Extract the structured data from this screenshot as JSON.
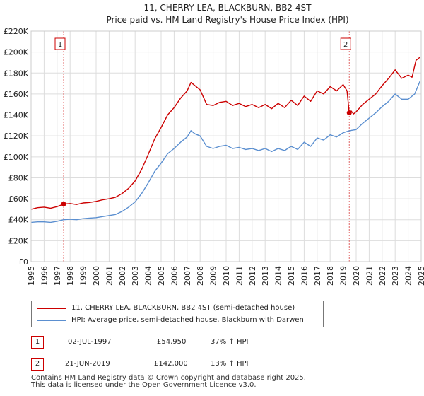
{
  "chart_data": {
    "type": "line",
    "title": "11, CHERRY LEA, BLACKBURN, BB2 4ST",
    "subtitle": "Price paid vs. HM Land Registry's House Price Index (HPI)",
    "xlim": [
      1995,
      2025
    ],
    "ylim": [
      0,
      220000
    ],
    "x_ticks": [
      1995,
      1996,
      1997,
      1998,
      1999,
      2000,
      2001,
      2002,
      2003,
      2004,
      2005,
      2006,
      2007,
      2008,
      2009,
      2010,
      2011,
      2012,
      2013,
      2014,
      2015,
      2016,
      2017,
      2018,
      2019,
      2020,
      2021,
      2022,
      2023,
      2024,
      2025
    ],
    "y_ticks": [
      0,
      20000,
      40000,
      60000,
      80000,
      100000,
      120000,
      140000,
      160000,
      180000,
      200000,
      220000
    ],
    "y_tick_labels": [
      "£0",
      "£20K",
      "£40K",
      "£60K",
      "£80K",
      "£100K",
      "£120K",
      "£140K",
      "£160K",
      "£180K",
      "£200K",
      "£220K"
    ],
    "grid": true,
    "colors": {
      "property": "#cc0000",
      "hpi": "#5b8fd0",
      "vline": "#e06666",
      "grid": "#dddddd"
    },
    "series": [
      {
        "name": "11, CHERRY LEA, BLACKBURN, BB2 4ST (semi-detached house)",
        "color": "#cc0000",
        "x": [
          1995.0,
          1995.5,
          1996.0,
          1996.5,
          1997.0,
          1997.5,
          1998.0,
          1998.5,
          1999.0,
          1999.5,
          2000.0,
          2000.5,
          2001.0,
          2001.5,
          2002.0,
          2002.5,
          2003.0,
          2003.5,
          2004.0,
          2004.5,
          2005.0,
          2005.5,
          2006.0,
          2006.5,
          2007.0,
          2007.3,
          2007.6,
          2008.0,
          2008.5,
          2009.0,
          2009.5,
          2010.0,
          2010.5,
          2011.0,
          2011.5,
          2012.0,
          2012.5,
          2013.0,
          2013.5,
          2014.0,
          2014.5,
          2015.0,
          2015.5,
          2016.0,
          2016.5,
          2017.0,
          2017.5,
          2018.0,
          2018.5,
          2019.0,
          2019.3,
          2019.47,
          2019.6,
          2019.8,
          2020.0,
          2020.5,
          2021.0,
          2021.5,
          2022.0,
          2022.5,
          2023.0,
          2023.5,
          2024.0,
          2024.3,
          2024.6,
          2024.9
        ],
        "y": [
          50000,
          51500,
          52000,
          51000,
          52500,
          54950,
          55500,
          54500,
          56000,
          56500,
          57500,
          59000,
          60000,
          61500,
          65000,
          70000,
          77000,
          88000,
          102000,
          117000,
          128000,
          140000,
          147000,
          156000,
          163000,
          171000,
          168000,
          164000,
          150000,
          149000,
          152000,
          153000,
          149000,
          151000,
          148000,
          150000,
          147000,
          150000,
          146000,
          151000,
          147000,
          154000,
          149000,
          158000,
          153000,
          163000,
          160000,
          167000,
          163000,
          169000,
          163000,
          142000,
          144000,
          141000,
          143000,
          150000,
          155000,
          160000,
          168000,
          175000,
          183000,
          175000,
          178000,
          176000,
          192000,
          195000
        ]
      },
      {
        "name": "HPI: Average price, semi-detached house, Blackburn with Darwen",
        "color": "#5b8fd0",
        "x": [
          1995.0,
          1995.5,
          1996.0,
          1996.5,
          1997.0,
          1997.5,
          1998.0,
          1998.5,
          1999.0,
          1999.5,
          2000.0,
          2000.5,
          2001.0,
          2001.5,
          2002.0,
          2002.5,
          2003.0,
          2003.5,
          2004.0,
          2004.5,
          2005.0,
          2005.5,
          2006.0,
          2006.5,
          2007.0,
          2007.3,
          2007.6,
          2008.0,
          2008.5,
          2009.0,
          2009.5,
          2010.0,
          2010.5,
          2011.0,
          2011.5,
          2012.0,
          2012.5,
          2013.0,
          2013.5,
          2014.0,
          2014.5,
          2015.0,
          2015.5,
          2016.0,
          2016.5,
          2017.0,
          2017.5,
          2018.0,
          2018.5,
          2019.0,
          2019.5,
          2020.0,
          2020.5,
          2021.0,
          2021.5,
          2022.0,
          2022.5,
          2023.0,
          2023.5,
          2024.0,
          2024.5,
          2024.9
        ],
        "y": [
          37500,
          38000,
          38000,
          37500,
          38500,
          40000,
          40500,
          40000,
          41000,
          41500,
          42000,
          43000,
          44000,
          45000,
          48000,
          52000,
          57000,
          65000,
          75000,
          86000,
          94000,
          103000,
          108000,
          114000,
          119000,
          125000,
          122000,
          120000,
          110000,
          108000,
          110000,
          111000,
          108000,
          109000,
          107000,
          108000,
          106000,
          108000,
          105000,
          108000,
          106000,
          110000,
          107000,
          114000,
          110000,
          118000,
          116000,
          121000,
          119000,
          123000,
          125000,
          126000,
          132000,
          137000,
          142000,
          148000,
          153000,
          160000,
          155000,
          155000,
          160000,
          172000
        ]
      }
    ],
    "transactions": [
      {
        "id": "1",
        "x": 1997.5,
        "y": 54950
      },
      {
        "id": "2",
        "x": 2019.47,
        "y": 142000
      }
    ]
  },
  "legend": [
    {
      "label": "11, CHERRY LEA, BLACKBURN, BB2 4ST (semi-detached house)",
      "color": "#cc0000"
    },
    {
      "label": "HPI: Average price, semi-detached house, Blackburn with Darwen",
      "color": "#5b8fd0"
    }
  ],
  "transactions_table": [
    {
      "id": "1",
      "date": "02-JUL-1997",
      "price": "£54,950",
      "change": "37% ↑ HPI"
    },
    {
      "id": "2",
      "date": "21-JUN-2019",
      "price": "£142,000",
      "change": "13% ↑ HPI"
    }
  ],
  "footer": {
    "line1": "Contains HM Land Registry data © Crown copyright and database right 2025.",
    "line2": "This data is licensed under the Open Government Licence v3.0."
  }
}
